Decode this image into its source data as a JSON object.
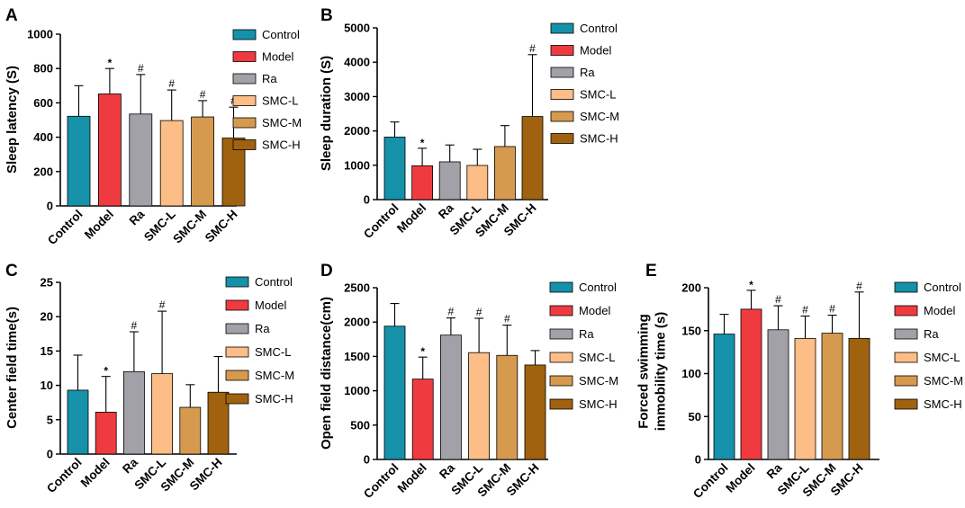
{
  "figure": {
    "panel_labels": [
      "A",
      "B",
      "C",
      "D",
      "E"
    ]
  },
  "styles": {
    "colors": [
      "#1591aa",
      "#ef3b40",
      "#a2a1a8",
      "#fcbd86",
      "#d69a4f",
      "#a0620f"
    ],
    "edge": "#000000"
  },
  "chart_data": [
    {
      "type": "bar",
      "panel": "A",
      "categories": [
        "Control",
        "Model",
        "Ra",
        "SMC-L",
        "SMC-M",
        "SMC-H"
      ],
      "values": [
        522,
        652,
        535,
        497,
        518,
        395
      ],
      "errors": [
        178,
        148,
        230,
        178,
        95,
        180
      ],
      "marks": [
        "",
        "*",
        "#",
        "#",
        "#",
        "#"
      ],
      "ylabel": "Sleep latency  (S)",
      "ylim": [
        0,
        1000
      ],
      "yticks": [
        0,
        200,
        400,
        600,
        800,
        1000
      ],
      "legend": [
        "Control",
        "Model",
        "Ra",
        "SMC-L",
        "SMC-M",
        "SMC-H"
      ],
      "legend_position": "right"
    },
    {
      "type": "bar",
      "panel": "B",
      "categories": [
        "Control",
        "Model",
        "Ra",
        "SMC-L",
        "SMC-M",
        "SMC-H"
      ],
      "values": [
        1820,
        985,
        1100,
        995,
        1545,
        2420
      ],
      "errors": [
        440,
        510,
        490,
        470,
        610,
        1800
      ],
      "marks": [
        "",
        "*",
        "",
        "",
        "",
        "#"
      ],
      "ylabel": "Sleep duration  (S)",
      "ylim": [
        0,
        5000
      ],
      "yticks": [
        0,
        1000,
        2000,
        3000,
        4000,
        5000
      ],
      "legend": [
        "Control",
        "Model",
        "Ra",
        "SMC-L",
        "SMC-M",
        "SMC-H"
      ],
      "legend_position": "right"
    },
    {
      "type": "bar",
      "panel": "C",
      "categories": [
        "Control",
        "Model",
        "Ra",
        "SMC-L",
        "SMC-M",
        "SMC-H"
      ],
      "values": [
        9.3,
        6.1,
        12.0,
        11.7,
        6.8,
        9.0
      ],
      "errors": [
        5.1,
        5.2,
        5.8,
        9.1,
        3.3,
        5.2
      ],
      "marks": [
        "",
        "*",
        "#",
        "#",
        "",
        ""
      ],
      "ylabel": "Center field time(s)",
      "ylim": [
        0,
        25
      ],
      "yticks": [
        0,
        5,
        10,
        15,
        20,
        25
      ],
      "legend": [
        "Control",
        "Model",
        "Ra",
        "SMC-L",
        "SMC-M",
        "SMC-H"
      ],
      "legend_position": "right"
    },
    {
      "type": "bar",
      "panel": "D",
      "categories": [
        "Control",
        "Model",
        "Ra",
        "SMC-L",
        "SMC-M",
        "SMC-H"
      ],
      "values": [
        1940,
        1170,
        1810,
        1555,
        1515,
        1375
      ],
      "errors": [
        330,
        320,
        250,
        500,
        440,
        210
      ],
      "marks": [
        "",
        "*",
        "#",
        "#",
        "#",
        ""
      ],
      "ylabel": "Open field distance(cm)",
      "ylim": [
        0,
        2500
      ],
      "yticks": [
        0,
        500,
        1000,
        1500,
        2000,
        2500
      ],
      "legend": [
        "Control",
        "Model",
        "Ra",
        "SMC-L",
        "SMC-M",
        "SMC-H"
      ],
      "legend_position": "right"
    },
    {
      "type": "bar",
      "panel": "E",
      "categories": [
        "Control",
        "Model",
        "Ra",
        "SMC-L",
        "SMC-M",
        "SMC-H"
      ],
      "values": [
        146,
        175,
        151,
        141,
        147,
        141
      ],
      "errors": [
        23,
        22,
        28,
        26,
        21,
        54
      ],
      "marks": [
        "",
        "*",
        "#",
        "#",
        "#",
        "#"
      ],
      "ylabel": "Forced swimming\nimmobility time (s)",
      "ylim": [
        0,
        200
      ],
      "yticks": [
        0,
        50,
        100,
        150,
        200
      ],
      "legend": [
        "Control",
        "Model",
        "Ra",
        "SMC-L",
        "SMC-M",
        "SMC-H"
      ],
      "legend_position": "right"
    }
  ]
}
